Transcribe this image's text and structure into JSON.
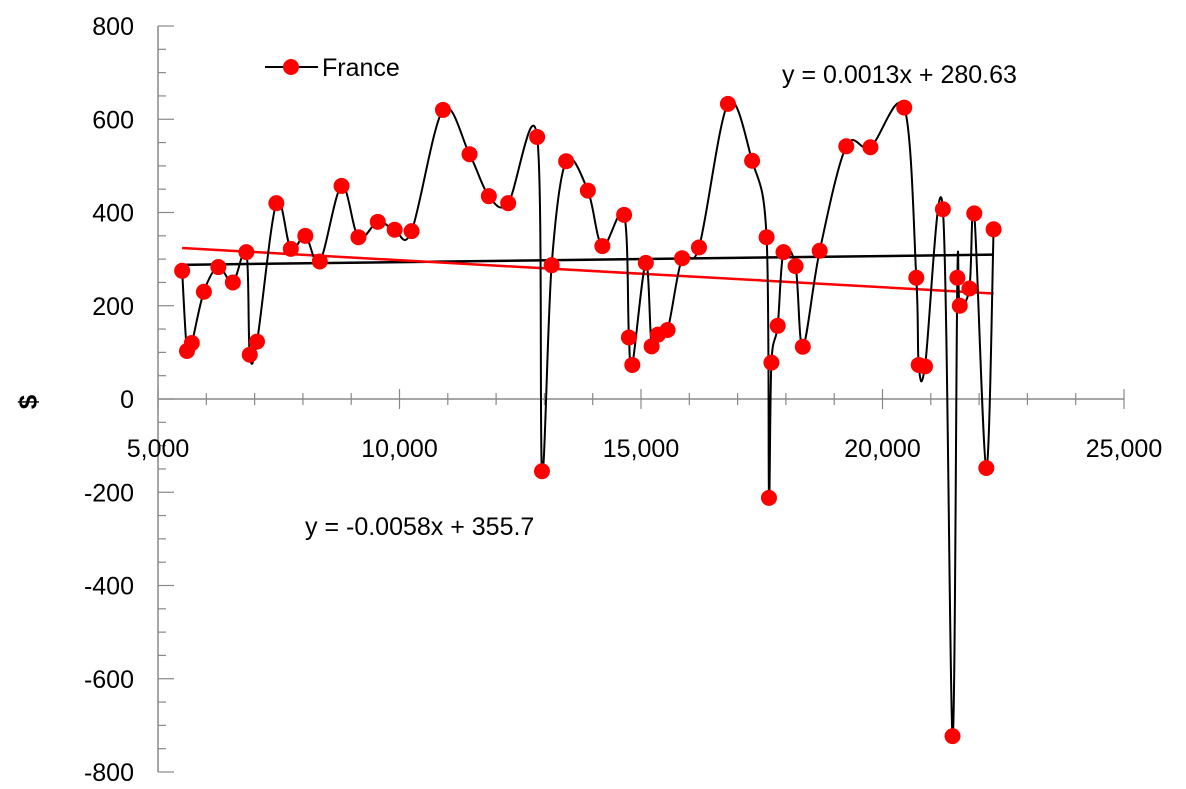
{
  "chart_data": {
    "type": "scatter",
    "title": "",
    "xlabel": "",
    "ylabel": "$",
    "xlim": [
      5000,
      25000
    ],
    "ylim": [
      -800,
      800
    ],
    "x_ticks": [
      5000,
      10000,
      15000,
      20000,
      25000
    ],
    "x_tick_labels": [
      "5,000",
      "10,000",
      "15,000",
      "20,000",
      "25,000"
    ],
    "y_ticks": [
      800,
      600,
      400,
      200,
      0,
      -200,
      -400,
      -600,
      -800
    ],
    "y_tick_labels": [
      "800",
      "600",
      "400",
      "200",
      "0",
      "-200",
      "-400",
      "-600",
      "-800"
    ],
    "grid": false,
    "legend": {
      "position": "top-left",
      "entries": [
        "France"
      ]
    },
    "series": [
      {
        "name": "France",
        "marker_color": "#ff0000",
        "line_color": "#000000",
        "line_style": "smooth",
        "points": [
          [
            5500,
            275
          ],
          [
            5600,
            103
          ],
          [
            5700,
            120
          ],
          [
            5950,
            230
          ],
          [
            6250,
            283
          ],
          [
            6550,
            250
          ],
          [
            6830,
            315
          ],
          [
            6900,
            95
          ],
          [
            7050,
            123
          ],
          [
            7450,
            420
          ],
          [
            7750,
            322
          ],
          [
            8050,
            350
          ],
          [
            8350,
            295
          ],
          [
            8800,
            457
          ],
          [
            9150,
            347
          ],
          [
            9550,
            380
          ],
          [
            9900,
            363
          ],
          [
            10250,
            360
          ],
          [
            10900,
            620
          ],
          [
            11450,
            525
          ],
          [
            11850,
            435
          ],
          [
            12250,
            420
          ],
          [
            12850,
            562
          ],
          [
            12950,
            -155
          ],
          [
            13150,
            287
          ],
          [
            13450,
            510
          ],
          [
            13900,
            447
          ],
          [
            14200,
            328
          ],
          [
            14650,
            395
          ],
          [
            14750,
            132
          ],
          [
            14820,
            73
          ],
          [
            15100,
            292
          ],
          [
            15220,
            113
          ],
          [
            15350,
            138
          ],
          [
            15550,
            148
          ],
          [
            15850,
            302
          ],
          [
            16200,
            325
          ],
          [
            16800,
            633
          ],
          [
            17300,
            511
          ],
          [
            17600,
            347
          ],
          [
            17650,
            -212
          ],
          [
            17700,
            78
          ],
          [
            17830,
            157
          ],
          [
            17950,
            315
          ],
          [
            18200,
            285
          ],
          [
            18350,
            112
          ],
          [
            18700,
            318
          ],
          [
            19250,
            542
          ],
          [
            19750,
            540
          ],
          [
            20450,
            625
          ],
          [
            20700,
            260
          ],
          [
            20750,
            73
          ],
          [
            20880,
            70
          ],
          [
            21250,
            407
          ],
          [
            21450,
            -723
          ],
          [
            21550,
            260
          ],
          [
            21600,
            200
          ],
          [
            21800,
            237
          ],
          [
            21900,
            398
          ],
          [
            22150,
            -148
          ],
          [
            22300,
            364
          ]
        ]
      }
    ],
    "trendlines": [
      {
        "color": "#000000",
        "slope": 0.0013,
        "intercept": 280.63,
        "x_range": [
          5500,
          22300
        ],
        "equation": "y = 0.0013x + 280.63"
      },
      {
        "color": "#ff0000",
        "slope": -0.0058,
        "intercept": 355.7,
        "x_range": [
          5500,
          22300
        ],
        "equation": "y = -0.0058x + 355.7"
      }
    ]
  }
}
